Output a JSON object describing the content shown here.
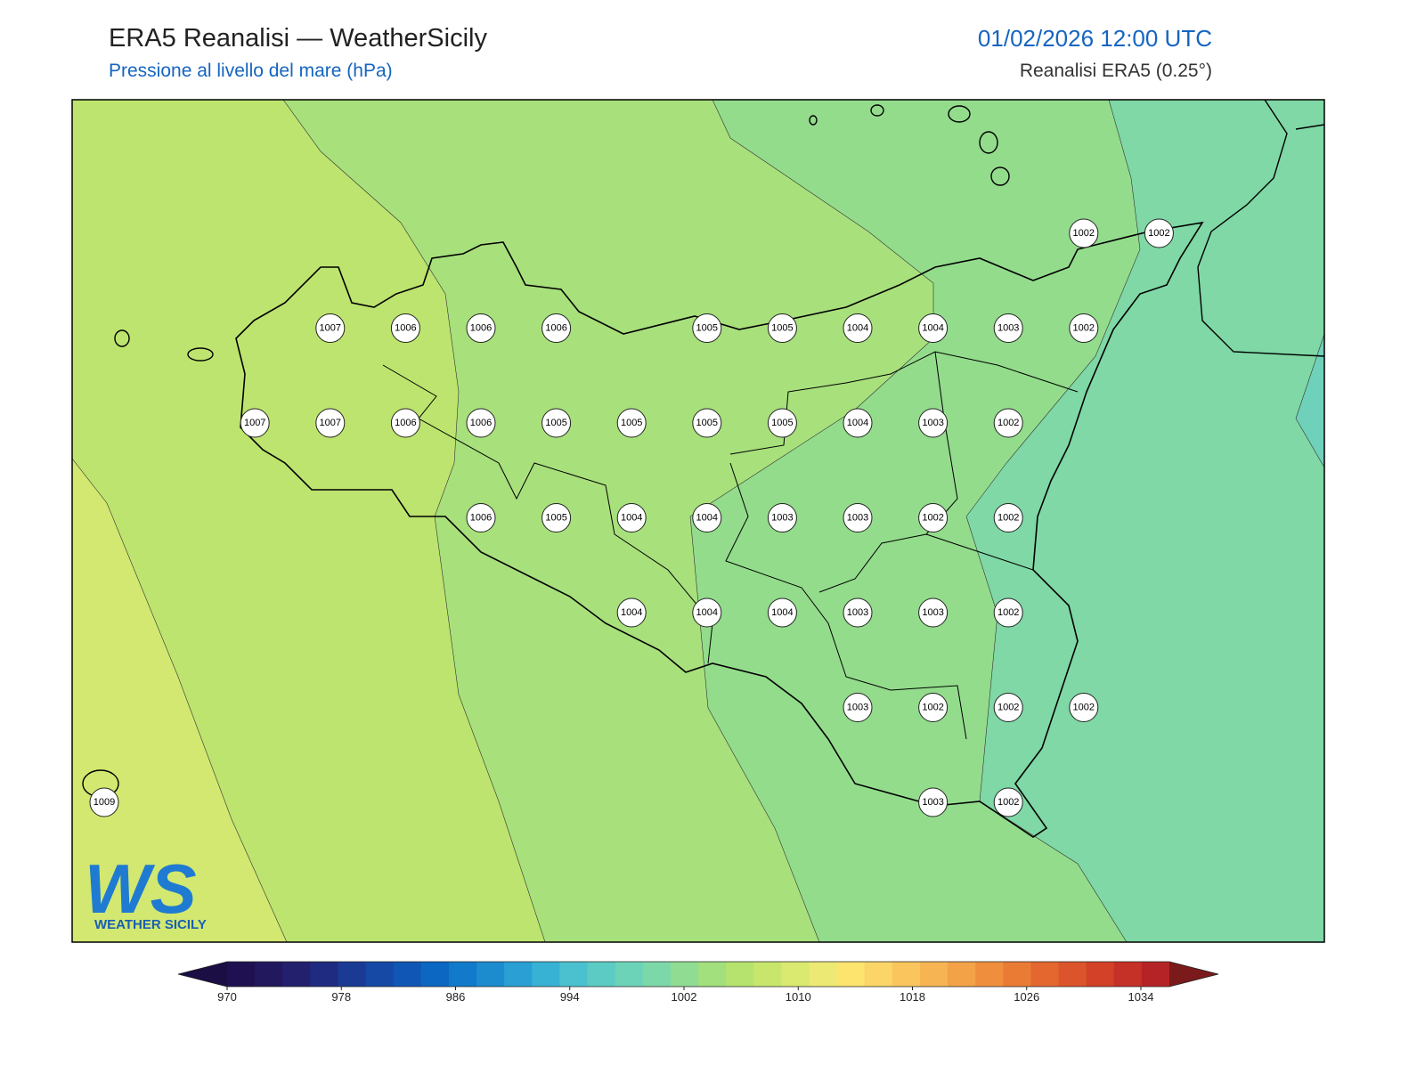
{
  "header": {
    "title": "ERA5 Reanalisi — WeatherSicily",
    "subtitle": "Pressione al livello del mare (hPa)",
    "datetime": "01/02/2026 12:00 UTC",
    "source": "Reanalisi ERA5 (0.25°)"
  },
  "map": {
    "stations": [
      1002,
      1002,
      1007,
      1006,
      1006,
      1006,
      1005,
      1005,
      1004,
      1004,
      1003,
      1002,
      1007,
      1007,
      1006,
      1006,
      1005,
      1005,
      1005,
      1005,
      1004,
      1003,
      1002,
      1006,
      1005,
      1004,
      1004,
      1003,
      1003,
      1002,
      1002,
      1004,
      1004,
      1004,
      1003,
      1003,
      1002,
      1003,
      1002,
      1002,
      1002,
      1009,
      1003,
      1002
    ]
  },
  "colorbar": {
    "lim": [
      970,
      1034
    ],
    "ticks": [
      970,
      978,
      986,
      994,
      1002,
      1010,
      1018,
      1026,
      1034
    ],
    "colors": [
      "#1f1151",
      "#22185e",
      "#23206e",
      "#1f2b80",
      "#1a3a94",
      "#1648a6",
      "#1057b5",
      "#0b67c2",
      "#117aca",
      "#1d8ccf",
      "#2a9fd4",
      "#38b2d4",
      "#4bc1cf",
      "#5ccbc4",
      "#6dd3b8",
      "#7dd8a9",
      "#8fdc92",
      "#a2e07d",
      "#b5e36e",
      "#c8e66c",
      "#dae970",
      "#ecea74",
      "#fce46f",
      "#fbd567",
      "#f9c55c",
      "#f6b452",
      "#f3a247",
      "#ef8f3d",
      "#ea7b35",
      "#e4672f",
      "#dc542b",
      "#d24128",
      "#c53027",
      "#b62326"
    ],
    "under_color": "#1a0e45",
    "over_color": "#7a1a1a"
  },
  "logo": {
    "mark": "WS",
    "text": "WEATHER SICILY"
  }
}
